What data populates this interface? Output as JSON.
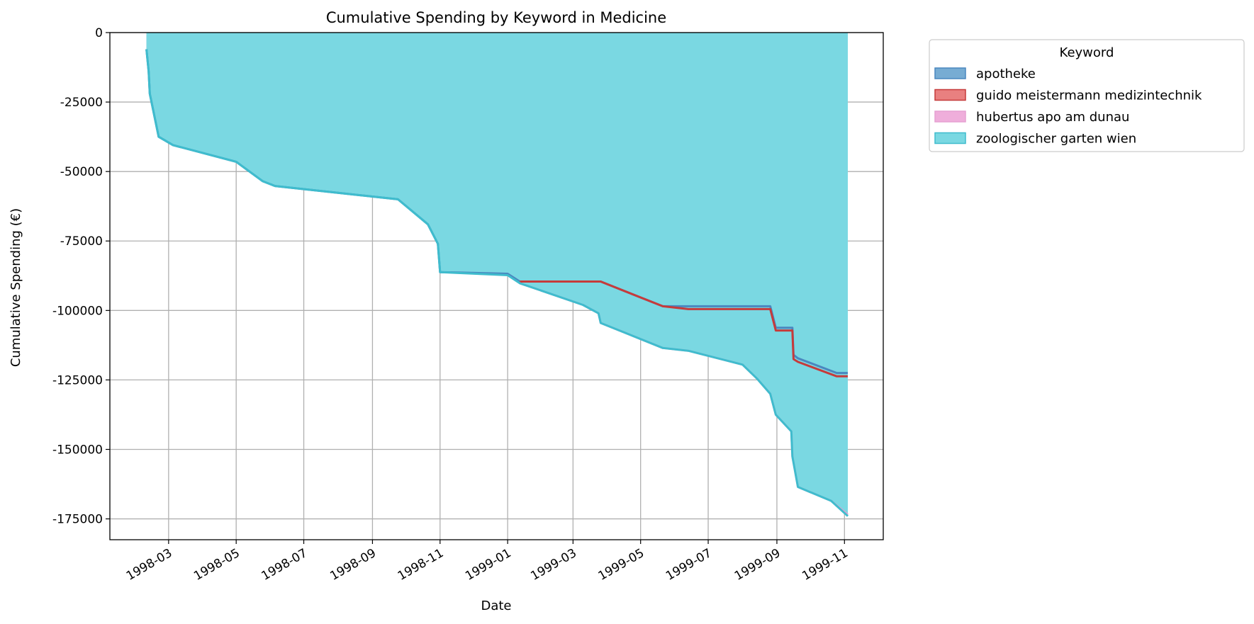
{
  "chart_data": {
    "type": "area",
    "stacked": true,
    "title": "Cumulative Spending by Keyword in Medicine",
    "xlabel": "Date",
    "ylabel": "Cumulative Spending (€)",
    "x_axis_type": "date",
    "xlim": [
      "1998-01-07",
      "1999-12-06"
    ],
    "ylim": [
      -182500,
      0
    ],
    "grid": true,
    "legend": {
      "title": "Keyword",
      "placement": "outside-top-right"
    },
    "x_ticks": [
      "1998-03",
      "1998-05",
      "1998-07",
      "1998-09",
      "1998-11",
      "1999-01",
      "1999-03",
      "1999-05",
      "1999-07",
      "1999-09",
      "1999-11"
    ],
    "y_ticks": [
      0,
      -25000,
      -50000,
      -75000,
      -100000,
      -125000,
      -150000,
      -175000
    ],
    "series": [
      {
        "name": "apotheke",
        "fill": "#77acd3",
        "stroke": "#4a87bf",
        "points": [
          [
            "1998-02-09",
            -6000
          ],
          [
            "1998-02-11",
            -14000
          ],
          [
            "1998-02-12",
            -22000
          ],
          [
            "1998-02-20",
            -37500
          ],
          [
            "1998-03-05",
            -40500
          ],
          [
            "1998-05-01",
            -46500
          ],
          [
            "1998-05-25",
            -53500
          ],
          [
            "1998-06-05",
            -55200
          ],
          [
            "1998-09-24",
            -60000
          ],
          [
            "1998-10-21",
            -69000
          ],
          [
            "1998-10-30",
            -76000
          ],
          [
            "1998-11-01",
            -86200
          ],
          [
            "1999-01-01",
            -86800
          ],
          [
            "1999-01-12",
            -89600
          ],
          [
            "1999-03-26",
            -89600
          ],
          [
            "1999-05-21",
            -98500
          ],
          [
            "1999-06-13",
            -98500
          ],
          [
            "1999-08-26",
            -98500
          ],
          [
            "1999-08-31",
            -106200
          ],
          [
            "1999-09-15",
            -106200
          ],
          [
            "1999-09-16",
            -116000
          ],
          [
            "1999-09-20",
            -117200
          ],
          [
            "1999-10-25",
            -122500
          ],
          [
            "1999-11-04",
            -122500
          ]
        ]
      },
      {
        "name": "guido meistermann medizintechnik",
        "fill": "#e98080",
        "stroke": "#c63b3b",
        "points": [
          [
            "1999-01-12",
            -89600
          ],
          [
            "1999-03-26",
            -89600
          ],
          [
            "1999-05-21",
            -98500
          ],
          [
            "1999-06-13",
            -99500
          ],
          [
            "1999-08-26",
            -99500
          ],
          [
            "1999-08-31",
            -107200
          ],
          [
            "1999-09-15",
            -107200
          ],
          [
            "1999-09-16",
            -117500
          ],
          [
            "1999-09-20",
            -118500
          ],
          [
            "1999-10-25",
            -123700
          ],
          [
            "1999-11-04",
            -123700
          ]
        ]
      },
      {
        "name": "hubertus apo am dunau",
        "fill": "#efaedb",
        "stroke": "#e6a0d2",
        "points": [
          [
            "1999-01-12",
            -90200
          ],
          [
            "1999-03-10",
            -98000
          ],
          [
            "1999-03-24",
            -101000
          ],
          [
            "1999-03-26",
            -104500
          ],
          [
            "1999-05-21",
            -113500
          ],
          [
            "1999-06-13",
            -114500
          ],
          [
            "1999-08-01",
            -119500
          ],
          [
            "1999-08-14",
            -124500
          ],
          [
            "1999-08-26",
            -130000
          ],
          [
            "1999-08-31",
            -137500
          ],
          [
            "1999-09-14",
            -143500
          ],
          [
            "1999-09-15",
            -152500
          ],
          [
            "1999-09-20",
            -163500
          ],
          [
            "1999-10-20",
            -168500
          ],
          [
            "1999-11-04",
            -173500
          ]
        ]
      },
      {
        "name": "zoologischer garten wien",
        "fill": "#7ad8e2",
        "stroke": "#3fbccd",
        "points": [
          [
            "1998-02-09",
            -6000
          ],
          [
            "1998-02-11",
            -14000
          ],
          [
            "1998-02-12",
            -22000
          ],
          [
            "1998-02-20",
            -37500
          ],
          [
            "1998-03-05",
            -40500
          ],
          [
            "1998-05-01",
            -46500
          ],
          [
            "1998-05-25",
            -53500
          ],
          [
            "1998-06-05",
            -55200
          ],
          [
            "1998-09-24",
            -60000
          ],
          [
            "1998-10-21",
            -69000
          ],
          [
            "1998-10-30",
            -76000
          ],
          [
            "1998-11-01",
            -86200
          ],
          [
            "1999-01-01",
            -87300
          ],
          [
            "1999-01-12",
            -90200
          ],
          [
            "1999-03-10",
            -98000
          ],
          [
            "1999-03-24",
            -101000
          ],
          [
            "1999-03-26",
            -104500
          ],
          [
            "1999-05-21",
            -113500
          ],
          [
            "1999-06-13",
            -114500
          ],
          [
            "1999-08-01",
            -119500
          ],
          [
            "1999-08-14",
            -124500
          ],
          [
            "1999-08-26",
            -130000
          ],
          [
            "1999-08-31",
            -137500
          ],
          [
            "1999-09-14",
            -143500
          ],
          [
            "1999-09-15",
            -152500
          ],
          [
            "1999-09-20",
            -163500
          ],
          [
            "1999-10-20",
            -168500
          ],
          [
            "1999-11-04",
            -174000
          ]
        ]
      }
    ]
  }
}
